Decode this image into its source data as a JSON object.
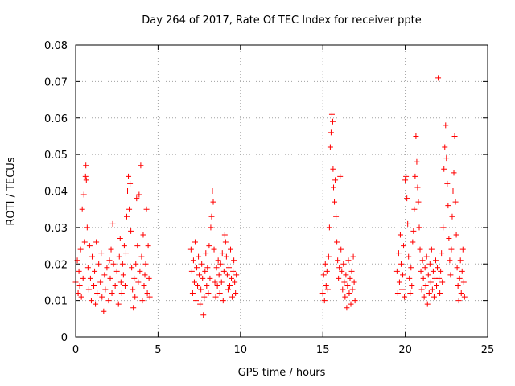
{
  "chart_data": {
    "type": "scatter",
    "title": "Day 264 of 2017, Rate Of TEC Index for receiver ppte",
    "xlabel": "GPS time / hours",
    "ylabel": "ROTI / TECUs",
    "xlim": [
      0,
      25
    ],
    "ylim": [
      0,
      0.08
    ],
    "x_ticks": [
      "0",
      "5",
      "10",
      "15",
      "20",
      "25"
    ],
    "y_ticks": [
      "0",
      "0.01",
      "0.02",
      "0.03",
      "0.04",
      "0.05",
      "0.06",
      "0.07",
      "0.08"
    ],
    "grid": true,
    "marker": "+",
    "color": "#ff0000",
    "series": [
      {
        "points": [
          [
            0.0,
            0.015
          ],
          [
            0.1,
            0.021
          ],
          [
            0.15,
            0.012
          ],
          [
            0.2,
            0.018
          ],
          [
            0.25,
            0.014
          ],
          [
            0.3,
            0.024
          ],
          [
            0.35,
            0.011
          ],
          [
            0.4,
            0.035
          ],
          [
            0.45,
            0.016
          ],
          [
            0.5,
            0.039
          ],
          [
            0.55,
            0.026
          ],
          [
            0.6,
            0.044
          ],
          [
            0.62,
            0.047
          ],
          [
            0.65,
            0.043
          ],
          [
            0.7,
            0.03
          ],
          [
            0.75,
            0.019
          ],
          [
            0.8,
            0.013
          ],
          [
            0.85,
            0.025
          ],
          [
            0.9,
            0.016
          ],
          [
            0.95,
            0.01
          ],
          [
            1.0,
            0.022
          ],
          [
            1.1,
            0.014
          ],
          [
            1.15,
            0.018
          ],
          [
            1.2,
            0.009
          ],
          [
            1.25,
            0.026
          ],
          [
            1.3,
            0.012
          ],
          [
            1.4,
            0.02
          ],
          [
            1.5,
            0.015
          ],
          [
            1.55,
            0.023
          ],
          [
            1.6,
            0.011
          ],
          [
            1.7,
            0.007
          ],
          [
            1.75,
            0.017
          ],
          [
            1.8,
            0.013
          ],
          [
            1.9,
            0.019
          ],
          [
            2.0,
            0.01
          ],
          [
            2.05,
            0.021
          ],
          [
            2.1,
            0.016
          ],
          [
            2.15,
            0.024
          ],
          [
            2.2,
            0.012
          ],
          [
            2.25,
            0.031
          ],
          [
            2.3,
            0.02
          ],
          [
            2.4,
            0.014
          ],
          [
            2.5,
            0.018
          ],
          [
            2.6,
            0.009
          ],
          [
            2.65,
            0.022
          ],
          [
            2.7,
            0.027
          ],
          [
            2.75,
            0.015
          ],
          [
            2.8,
            0.012
          ],
          [
            2.85,
            0.02
          ],
          [
            2.9,
            0.017
          ],
          [
            2.95,
            0.025
          ],
          [
            3.0,
            0.014
          ],
          [
            3.05,
            0.023
          ],
          [
            3.1,
            0.033
          ],
          [
            3.15,
            0.04
          ],
          [
            3.2,
            0.044
          ],
          [
            3.25,
            0.035
          ],
          [
            3.3,
            0.042
          ],
          [
            3.35,
            0.029
          ],
          [
            3.4,
            0.019
          ],
          [
            3.45,
            0.013
          ],
          [
            3.5,
            0.008
          ],
          [
            3.55,
            0.016
          ],
          [
            3.6,
            0.011
          ],
          [
            3.65,
            0.02
          ],
          [
            3.7,
            0.038
          ],
          [
            3.75,
            0.025
          ],
          [
            3.8,
            0.015
          ],
          [
            3.85,
            0.039
          ],
          [
            3.9,
            0.018
          ],
          [
            3.95,
            0.047
          ],
          [
            4.0,
            0.022
          ],
          [
            4.05,
            0.01
          ],
          [
            4.1,
            0.028
          ],
          [
            4.15,
            0.014
          ],
          [
            4.2,
            0.017
          ],
          [
            4.25,
            0.02
          ],
          [
            4.3,
            0.035
          ],
          [
            4.35,
            0.012
          ],
          [
            4.4,
            0.025
          ],
          [
            4.45,
            0.016
          ],
          [
            4.5,
            0.011
          ],
          [
            7.0,
            0.024
          ],
          [
            7.05,
            0.018
          ],
          [
            7.1,
            0.012
          ],
          [
            7.15,
            0.021
          ],
          [
            7.2,
            0.015
          ],
          [
            7.25,
            0.026
          ],
          [
            7.3,
            0.01
          ],
          [
            7.35,
            0.019
          ],
          [
            7.4,
            0.014
          ],
          [
            7.45,
            0.022
          ],
          [
            7.5,
            0.017
          ],
          [
            7.55,
            0.009
          ],
          [
            7.6,
            0.013
          ],
          [
            7.65,
            0.02
          ],
          [
            7.7,
            0.016
          ],
          [
            7.75,
            0.006
          ],
          [
            7.8,
            0.011
          ],
          [
            7.85,
            0.018
          ],
          [
            7.9,
            0.023
          ],
          [
            7.95,
            0.014
          ],
          [
            8.0,
            0.019
          ],
          [
            8.05,
            0.012
          ],
          [
            8.1,
            0.025
          ],
          [
            8.15,
            0.016
          ],
          [
            8.2,
            0.03
          ],
          [
            8.25,
            0.033
          ],
          [
            8.3,
            0.04
          ],
          [
            8.35,
            0.037
          ],
          [
            8.4,
            0.024
          ],
          [
            8.45,
            0.015
          ],
          [
            8.5,
            0.011
          ],
          [
            8.55,
            0.019
          ],
          [
            8.6,
            0.014
          ],
          [
            8.65,
            0.021
          ],
          [
            8.7,
            0.017
          ],
          [
            8.75,
            0.012
          ],
          [
            8.8,
            0.02
          ],
          [
            8.85,
            0.015
          ],
          [
            8.9,
            0.023
          ],
          [
            8.95,
            0.01
          ],
          [
            9.0,
            0.018
          ],
          [
            9.05,
            0.028
          ],
          [
            9.1,
            0.026
          ],
          [
            9.15,
            0.022
          ],
          [
            9.2,
            0.017
          ],
          [
            9.25,
            0.013
          ],
          [
            9.3,
            0.019
          ],
          [
            9.35,
            0.014
          ],
          [
            9.4,
            0.024
          ],
          [
            9.45,
            0.016
          ],
          [
            9.5,
            0.011
          ],
          [
            9.55,
            0.018
          ],
          [
            9.6,
            0.021
          ],
          [
            9.65,
            0.015
          ],
          [
            9.7,
            0.012
          ],
          [
            9.75,
            0.017
          ],
          [
            15.0,
            0.012
          ],
          [
            15.05,
            0.017
          ],
          [
            15.1,
            0.01
          ],
          [
            15.15,
            0.02
          ],
          [
            15.2,
            0.014
          ],
          [
            15.25,
            0.018
          ],
          [
            15.3,
            0.013
          ],
          [
            15.35,
            0.022
          ],
          [
            15.4,
            0.03
          ],
          [
            15.45,
            0.052
          ],
          [
            15.5,
            0.056
          ],
          [
            15.55,
            0.061
          ],
          [
            15.6,
            0.059
          ],
          [
            15.62,
            0.046
          ],
          [
            15.65,
            0.041
          ],
          [
            15.7,
            0.037
          ],
          [
            15.75,
            0.043
          ],
          [
            15.8,
            0.033
          ],
          [
            15.85,
            0.026
          ],
          [
            15.9,
            0.021
          ],
          [
            15.95,
            0.016
          ],
          [
            16.0,
            0.019
          ],
          [
            16.05,
            0.044
          ],
          [
            16.1,
            0.024
          ],
          [
            16.15,
            0.018
          ],
          [
            16.2,
            0.013
          ],
          [
            16.25,
            0.02
          ],
          [
            16.3,
            0.015
          ],
          [
            16.35,
            0.011
          ],
          [
            16.4,
            0.017
          ],
          [
            16.45,
            0.008
          ],
          [
            16.5,
            0.014
          ],
          [
            16.55,
            0.021
          ],
          [
            16.6,
            0.012
          ],
          [
            16.65,
            0.016
          ],
          [
            16.7,
            0.009
          ],
          [
            16.75,
            0.018
          ],
          [
            16.8,
            0.013
          ],
          [
            16.85,
            0.022
          ],
          [
            16.9,
            0.015
          ],
          [
            16.95,
            0.01
          ],
          [
            19.5,
            0.018
          ],
          [
            19.55,
            0.012
          ],
          [
            19.6,
            0.023
          ],
          [
            19.65,
            0.015
          ],
          [
            19.7,
            0.028
          ],
          [
            19.75,
            0.02
          ],
          [
            19.8,
            0.013
          ],
          [
            19.85,
            0.017
          ],
          [
            19.9,
            0.025
          ],
          [
            19.95,
            0.011
          ],
          [
            20.0,
            0.043
          ],
          [
            20.05,
            0.044
          ],
          [
            20.1,
            0.038
          ],
          [
            20.15,
            0.031
          ],
          [
            20.2,
            0.022
          ],
          [
            20.25,
            0.016
          ],
          [
            20.3,
            0.012
          ],
          [
            20.35,
            0.019
          ],
          [
            20.4,
            0.014
          ],
          [
            20.45,
            0.026
          ],
          [
            20.5,
            0.029
          ],
          [
            20.55,
            0.035
          ],
          [
            20.6,
            0.044
          ],
          [
            20.65,
            0.055
          ],
          [
            20.7,
            0.048
          ],
          [
            20.75,
            0.041
          ],
          [
            20.8,
            0.037
          ],
          [
            20.85,
            0.03
          ],
          [
            20.9,
            0.024
          ],
          [
            20.95,
            0.018
          ],
          [
            21.0,
            0.013
          ],
          [
            21.05,
            0.021
          ],
          [
            21.1,
            0.016
          ],
          [
            21.15,
            0.011
          ],
          [
            21.2,
            0.019
          ],
          [
            21.25,
            0.014
          ],
          [
            21.3,
            0.022
          ],
          [
            21.35,
            0.009
          ],
          [
            21.4,
            0.017
          ],
          [
            21.45,
            0.012
          ],
          [
            21.5,
            0.02
          ],
          [
            21.55,
            0.015
          ],
          [
            21.6,
            0.024
          ],
          [
            21.65,
            0.013
          ],
          [
            21.7,
            0.018
          ],
          [
            21.75,
            0.011
          ],
          [
            21.8,
            0.016
          ],
          [
            21.85,
            0.021
          ],
          [
            21.9,
            0.014
          ],
          [
            21.95,
            0.019
          ],
          [
            22.0,
            0.071
          ],
          [
            22.05,
            0.016
          ],
          [
            22.1,
            0.012
          ],
          [
            22.15,
            0.018
          ],
          [
            22.2,
            0.023
          ],
          [
            22.25,
            0.015
          ],
          [
            22.3,
            0.03
          ],
          [
            22.35,
            0.046
          ],
          [
            22.4,
            0.052
          ],
          [
            22.45,
            0.058
          ],
          [
            22.5,
            0.049
          ],
          [
            22.55,
            0.042
          ],
          [
            22.6,
            0.036
          ],
          [
            22.65,
            0.027
          ],
          [
            22.7,
            0.021
          ],
          [
            22.75,
            0.017
          ],
          [
            22.8,
            0.024
          ],
          [
            22.85,
            0.033
          ],
          [
            22.9,
            0.04
          ],
          [
            22.95,
            0.045
          ],
          [
            23.0,
            0.055
          ],
          [
            23.05,
            0.037
          ],
          [
            23.1,
            0.028
          ],
          [
            23.15,
            0.019
          ],
          [
            23.2,
            0.014
          ],
          [
            23.25,
            0.01
          ],
          [
            23.3,
            0.016
          ],
          [
            23.35,
            0.021
          ],
          [
            23.4,
            0.012
          ],
          [
            23.45,
            0.018
          ],
          [
            23.5,
            0.024
          ],
          [
            23.55,
            0.015
          ],
          [
            23.6,
            0.011
          ]
        ]
      }
    ]
  }
}
